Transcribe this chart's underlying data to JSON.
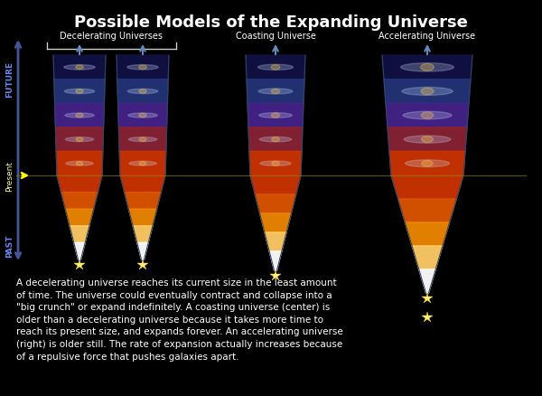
{
  "title": "Possible Models of the Expanding Universe",
  "title_fontsize": 13,
  "background_color": "#000000",
  "label_decelerating": "Decelerating Universes",
  "label_coasting": "Coasting Universe",
  "label_accelerating": "Accelerating Universe",
  "label_future": "FUTURE",
  "label_present": "Present",
  "label_past": "PAST",
  "caption": "A decelerating universe reaches its current size in the least amount\nof time. The universe could eventually contract and collapse into a\n\"big crunch\" or expand indefinitely. A coasting universe (center) is\nolder than a decelerating universe because it takes more time to\nreach its present size, and expands forever. An accelerating universe\n(right) is older still. The rate of expansion actually increases because\nof a repulsive force that pushes galaxies apart.",
  "caption_fontsize": 7.5,
  "text_color": "#ffffff",
  "arrow_color": "#5577bb",
  "upper_stripe_colors": [
    "#111144",
    "#223377",
    "#442288",
    "#882233",
    "#cc3300"
  ],
  "lower_stripe_colors": [
    "#cc3300",
    "#dd5500",
    "#ee8800",
    "#ffcc66",
    "#ffffff"
  ],
  "galaxy_color": "#ccddff",
  "galaxy_center_color": "#ffcc44",
  "outline_color": "#334466",
  "star_color": "#ffee88",
  "present_line_color": "#888800",
  "present_arrow_color": "#ffff00",
  "future_arrow_color": "#6688bb",
  "bracket_color": "#cccccc",
  "time_axis_color": "#445599"
}
